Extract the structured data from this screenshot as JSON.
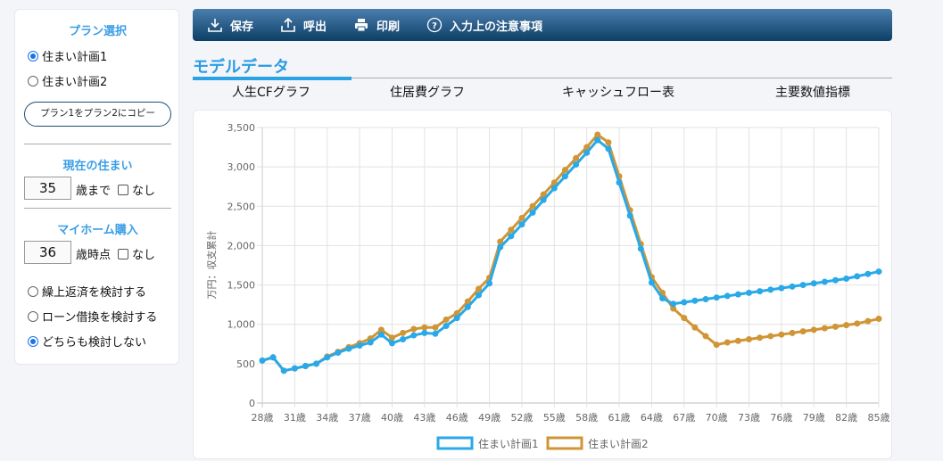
{
  "sidebar": {
    "plan_title": "プラン選択",
    "plans": [
      {
        "label": "住まい計画1",
        "selected": true
      },
      {
        "label": "住まい計画2",
        "selected": false
      }
    ],
    "copy_button": "プラン1をプラン2にコピー",
    "current_title": "現在の住まい",
    "current_age": "35",
    "current_unit": "歳まで",
    "current_none": "なし",
    "purchase_title": "マイホーム購入",
    "purchase_age": "36",
    "purchase_unit": "歳時点",
    "purchase_none": "なし",
    "options": [
      {
        "label": "繰上返済を検討する",
        "selected": false
      },
      {
        "label": "ローン借換を検討する",
        "selected": false
      },
      {
        "label": "どちらも検討しない",
        "selected": true
      }
    ]
  },
  "toolbar": {
    "save": "保存",
    "load": "呼出",
    "print": "印刷",
    "notes": "入力上の注意事項"
  },
  "section_title": "モデルデータ",
  "tabs": [
    "人生CFグラフ",
    "住居費グラフ",
    "キャッシュフロー表",
    "主要数値指標"
  ],
  "colors": {
    "series1": "#29a9e8",
    "series2": "#d09535",
    "accent": "#2a9be3"
  },
  "chart_data": {
    "type": "line",
    "ylabel": "万円：収支累計",
    "ylim": [
      0,
      3500
    ],
    "yticks": [
      0,
      500,
      1000,
      1500,
      2000,
      2500,
      3000,
      3500
    ],
    "ytick_labels": [
      "0",
      "500",
      "1,000",
      "1,500",
      "2,000",
      "2,500",
      "3,000",
      "3,500"
    ],
    "x_start": 28,
    "x_end": 85,
    "xtick_labels": [
      "28歳",
      "31歳",
      "34歳",
      "37歳",
      "40歳",
      "43歳",
      "46歳",
      "49歳",
      "52歳",
      "55歳",
      "58歳",
      "61歳",
      "64歳",
      "67歳",
      "70歳",
      "73歳",
      "76歳",
      "79歳",
      "82歳",
      "85歳"
    ],
    "legend": "bottom",
    "series": [
      {
        "name": "住まい計画1",
        "values": [
          540,
          580,
          410,
          440,
          470,
          500,
          580,
          640,
          690,
          730,
          770,
          870,
          760,
          810,
          860,
          890,
          880,
          980,
          1080,
          1220,
          1370,
          1520,
          1980,
          2120,
          2270,
          2420,
          2580,
          2730,
          2880,
          3030,
          3180,
          3340,
          3230,
          2800,
          2380,
          1960,
          1530,
          1330,
          1260,
          1280,
          1300,
          1320,
          1340,
          1360,
          1380,
          1400,
          1420,
          1440,
          1460,
          1480,
          1500,
          1520,
          1540,
          1560,
          1580,
          1610,
          1640,
          1670
        ]
      },
      {
        "name": "住まい計画2",
        "values": [
          540,
          580,
          410,
          440,
          470,
          500,
          590,
          650,
          710,
          760,
          820,
          930,
          830,
          890,
          940,
          960,
          960,
          1060,
          1140,
          1290,
          1450,
          1590,
          2050,
          2200,
          2350,
          2500,
          2650,
          2800,
          2960,
          3110,
          3250,
          3410,
          3310,
          2880,
          2450,
          2020,
          1600,
          1400,
          1200,
          1080,
          960,
          850,
          740,
          770,
          790,
          810,
          830,
          850,
          870,
          890,
          910,
          930,
          950,
          970,
          990,
          1010,
          1040,
          1070
        ]
      }
    ]
  }
}
